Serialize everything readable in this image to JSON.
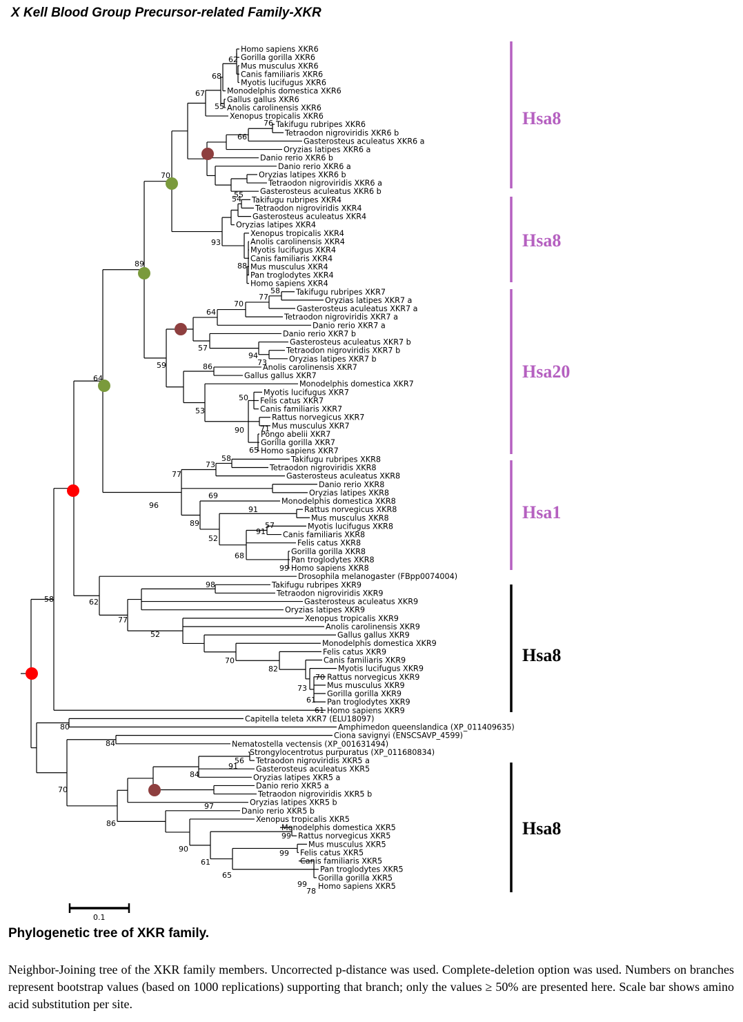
{
  "title": "X Kell Blood Group Precursor-related Family-XKR",
  "colors": {
    "purple": "#b560c0",
    "black": "#000000",
    "green": "#7a9a3c",
    "red": "#ff0000",
    "maroon": "#8e3f3f"
  },
  "clades": [
    {
      "label": "Hsa8",
      "color": "purple"
    },
    {
      "label": "Hsa8",
      "color": "purple"
    },
    {
      "label": "Hsa20",
      "color": "purple"
    },
    {
      "label": "Hsa1",
      "color": "purple"
    },
    {
      "label": "Hsa8",
      "color": "black"
    },
    {
      "label": "Hsa8",
      "color": "black"
    }
  ],
  "taxa": [
    "Homo sapiens XKR6",
    "Gorilla gorilla XKR6",
    "Mus musculus XKR6",
    "Canis familiaris XKR6",
    "Myotis lucifugus XKR6",
    "Monodelphis domestica XKR6",
    "Gallus gallus XKR6",
    "Anolis carolinensis XKR6",
    "Xenopus tropicalis XKR6",
    "Takifugu rubripes XKR6",
    "Tetraodon nigroviridis XKR6 b",
    "Gasterosteus aculeatus XKR6 a",
    "Oryzias latipes XKR6 a",
    "Danio rerio XKR6 b",
    "Danio rerio XKR6 a",
    "Oryzias latipes XKR6 b",
    "Tetraodon nigroviridis XKR6 a",
    "Gasterosteus aculeatus XKR6 b",
    "Takifugu rubripes XKR4",
    "Tetraodon nigroviridis XKR4",
    "Gasterosteus aculeatus XKR4",
    "Oryzias latipes XKR4",
    "Xenopus tropicalis XKR4",
    "Anolis carolinensis XKR4",
    "Myotis lucifugus XKR4",
    "Canis familiaris XKR4",
    "Mus musculus XKR4",
    "Pan troglodytes XKR4",
    "Homo sapiens XKR4",
    "Takifugu rubripes XKR7",
    "Oryzias latipes XKR7 a",
    "Gasterosteus aculeatus XKR7 a",
    "Tetraodon nigroviridis XKR7 a",
    "Danio rerio XKR7 a",
    "Danio rerio XKR7 b",
    "Gasterosteus aculeatus XKR7 b",
    "Tetraodon nigroviridis XKR7 b",
    "Oryzias latipes XKR7 b",
    "Anolis carolinensis XKR7",
    "Gallus gallus XKR7",
    "Monodelphis domestica XKR7",
    "Myotis lucifugus XKR7",
    "Felis catus XKR7",
    "Canis familiaris XKR7",
    "Rattus norvegicus XKR7",
    "Mus musculus XKR7",
    "Pongo abelii XKR7",
    "Gorilla gorilla XKR7",
    "Homo sapiens XKR7",
    "Takifugu rubripes XKR8",
    "Tetraodon nigroviridis XKR8",
    "Gasterosteus aculeatus XKR8",
    "Danio rerio XKR8",
    "Oryzias latipes XKR8",
    "Monodelphis domestica XKR8",
    "Rattus norvegicus XKR8",
    "Mus musculus XKR8",
    "Myotis lucifugus XKR8",
    "Canis familiaris XKR8",
    "Felis catus XKR8",
    "Gorilla gorilla XKR8",
    "Pan troglodytes XKR8",
    "Homo sapiens XKR8",
    "Drosophila melanogaster (FBpp0074004)",
    "Takifugu rubripes XKR9",
    "Tetraodon nigroviridis XKR9",
    "Gasterosteus aculeatus XKR9",
    "Oryzias latipes XKR9",
    "Xenopus tropicalis XKR9",
    "Anolis carolinensis XKR9",
    "Gallus gallus XKR9",
    "Monodelphis domestica XKR9",
    "Felis catus XKR9",
    "Canis familiaris XKR9",
    "Myotis lucifugus XKR9",
    "Rattus norvegicus XKR9",
    "Mus musculus XKR9",
    "Gorilla gorilla XKR9",
    "Pan troglodytes XKR9",
    "Homo sapiens XKR9",
    "Capitella teleta XKR7 (ELU18097)",
    "Amphimedon queenslandica (XP_011409635)",
    "Ciona savignyi (ENSCSAVP_4599)",
    "Nematostella vectensis (XP_001631494)",
    "Strongylocentrotus purpuratus (XP_011680834)",
    "Tetraodon nigroviridis XKR5 a",
    "Gasterosteus aculeatus XKR5",
    "Oryzias latipes XKR5 a",
    "Danio rerio XKR5 a",
    "Tetraodon nigroviridis XKR5 b",
    "Oryzias latipes XKR5 b",
    "Danio rerio XKR5 b",
    "Xenopus tropicalis XKR5",
    "Monodelphis domestica XKR5",
    "Rattus norvegicus XKR5",
    "Mus musculus XKR5",
    "Felis catus XKR5",
    "Canis familiaris XKR5",
    "Pan troglodytes XKR5",
    "Gorilla gorilla XKR5",
    "Homo sapiens XKR5"
  ],
  "bootstrap": [
    "62",
    "68",
    "67",
    "55",
    "76",
    "66",
    "55",
    "54",
    "93",
    "88",
    "70",
    "58",
    "77",
    "70",
    "64",
    "57",
    "94",
    "73",
    "86",
    "59",
    "50",
    "53",
    "71",
    "90",
    "65",
    "89",
    "58",
    "73",
    "77",
    "69",
    "91",
    "57",
    "91",
    "89",
    "52",
    "68",
    "99",
    "96",
    "64",
    "98",
    "62",
    "77",
    "52",
    "70",
    "82",
    "70",
    "73",
    "61",
    "61",
    "58",
    "80",
    "84",
    "56",
    "91",
    "84",
    "97",
    "86",
    "99",
    "90",
    "99",
    "61",
    "65",
    "99",
    "78",
    "70"
  ],
  "scale_bar": {
    "label": "0.1"
  },
  "caption": {
    "title": "Phylogenetic tree of XKR family.",
    "text": "Neighbor-Joining tree of the XKR family members. Uncorrected p-distance was used. Complete-deletion option was used. Numbers on branches represent bootstrap values (based on 1000 replications) supporting that branch; only the values ≥ 50% are presented here. Scale bar shows amino acid substitution per site."
  }
}
